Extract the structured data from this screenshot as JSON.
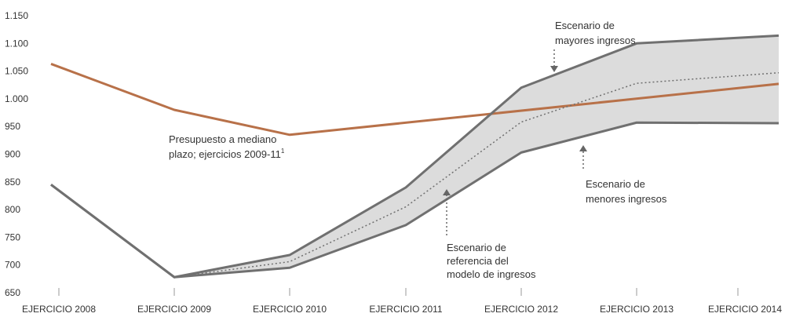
{
  "chart_data": {
    "type": "line",
    "categories": [
      "EJERCICIO 2008",
      "EJERCICIO 2009",
      "EJERCICIO 2010",
      "EJERCICIO 2011",
      "EJERCICIO 2012",
      "EJERCICIO 2013",
      "EJERCICIO 2014"
    ],
    "ylim": [
      650,
      1150
    ],
    "yticks": [
      650,
      700,
      750,
      800,
      850,
      900,
      950,
      "1.000",
      "1.050",
      "1.100",
      "1.150"
    ],
    "grid": false,
    "series": [
      {
        "id": "budget",
        "values": [
          1063,
          980,
          935,
          null,
          null,
          null,
          1027
        ],
        "color": "#b87149",
        "style": "solid"
      },
      {
        "id": "high",
        "values": [
          845,
          678,
          718,
          840,
          1020,
          1100,
          1114
        ],
        "color": "#707070",
        "style": "solid"
      },
      {
        "id": "low",
        "values": [
          845,
          678,
          695,
          772,
          903,
          957,
          956
        ],
        "color": "#707070",
        "style": "solid"
      },
      {
        "id": "reference",
        "values": [
          null,
          678,
          706,
          805,
          958,
          1028,
          1047
        ],
        "color": "#707070",
        "style": "dotted"
      }
    ],
    "band": {
      "upper": "high",
      "lower": "low",
      "from": 1,
      "fill": "#dcdcdc"
    },
    "annotations": [
      {
        "id": "budget-label",
        "lines": [
          "Presupuesto a mediano",
          "plazo; ejercicios 2009-11"
        ],
        "superscript": "1"
      },
      {
        "id": "high-label",
        "lines": [
          "Escenario de",
          "mayores ingresos"
        ]
      },
      {
        "id": "low-label",
        "lines": [
          "Escenario de",
          "menores ingresos"
        ]
      },
      {
        "id": "reference-label",
        "lines": [
          "Escenario de",
          "referencia del",
          "modelo de ingresos"
        ]
      }
    ]
  }
}
